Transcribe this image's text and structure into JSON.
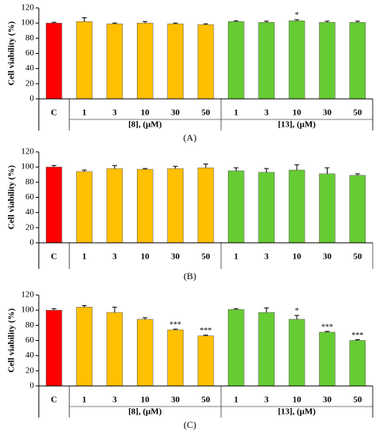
{
  "chart_data": [
    {
      "type": "bar",
      "label": "(A)",
      "y_label": "Cell viability (%)",
      "categories": [
        "C",
        "1",
        "3",
        "10",
        "30",
        "50",
        "1",
        "3",
        "10",
        "30",
        "50"
      ],
      "values": [
        100,
        102,
        99,
        100,
        99,
        98,
        102,
        101,
        103,
        101,
        101
      ],
      "errors": [
        1,
        5,
        1,
        2,
        1,
        1,
        1,
        1.5,
        1.5,
        1.5,
        1.5
      ],
      "colors": [
        "#ff0000",
        "#ffc000",
        "#ffc000",
        "#ffc000",
        "#ffc000",
        "#ffc000",
        "#66cc33",
        "#66cc33",
        "#66cc33",
        "#66cc33",
        "#66cc33"
      ],
      "annotations": [
        {
          "index": 8,
          "text": "*"
        }
      ],
      "groups": [
        {
          "label": "[8], (μM)",
          "start": 1,
          "end": 5
        },
        {
          "label": "[13], (μM)",
          "start": 6,
          "end": 10
        }
      ],
      "ylim": [
        0,
        120
      ],
      "yticks": [
        0,
        20,
        40,
        60,
        80,
        100,
        120
      ]
    },
    {
      "type": "bar",
      "label": "(B)",
      "y_label": "Cell viability (%)",
      "categories": [
        "C",
        "1",
        "3",
        "10",
        "30",
        "50",
        "1",
        "3",
        "10",
        "30",
        "50"
      ],
      "values": [
        100,
        94,
        98,
        97,
        98,
        99,
        95,
        93,
        96,
        91,
        89
      ],
      "errors": [
        2,
        2,
        4,
        1,
        3,
        5,
        4,
        5,
        7,
        8,
        2
      ],
      "colors": [
        "#ff0000",
        "#ffc000",
        "#ffc000",
        "#ffc000",
        "#ffc000",
        "#ffc000",
        "#66cc33",
        "#66cc33",
        "#66cc33",
        "#66cc33",
        "#66cc33"
      ],
      "annotations": [],
      "groups": [],
      "ylim": [
        0,
        120
      ],
      "yticks": [
        0,
        20,
        40,
        60,
        80,
        100,
        120
      ]
    },
    {
      "type": "bar",
      "label": "(C)",
      "y_label": "Cell viability (%)",
      "categories": [
        "C",
        "1",
        "3",
        "10",
        "30",
        "50",
        "1",
        "3",
        "10",
        "30",
        "50"
      ],
      "values": [
        100,
        104,
        97,
        88,
        74,
        66,
        101,
        97,
        88,
        71,
        60
      ],
      "errors": [
        2,
        2,
        7,
        2,
        1,
        1,
        1,
        6,
        5,
        1,
        1
      ],
      "colors": [
        "#ff0000",
        "#ffc000",
        "#ffc000",
        "#ffc000",
        "#ffc000",
        "#ffc000",
        "#66cc33",
        "#66cc33",
        "#66cc33",
        "#66cc33",
        "#66cc33"
      ],
      "annotations": [
        {
          "index": 4,
          "text": "***"
        },
        {
          "index": 5,
          "text": "***"
        },
        {
          "index": 8,
          "text": "*"
        },
        {
          "index": 9,
          "text": "***"
        },
        {
          "index": 10,
          "text": "***"
        }
      ],
      "groups": [
        {
          "label": "[8], (μM)",
          "start": 1,
          "end": 5
        },
        {
          "label": "[13], (μM)",
          "start": 6,
          "end": 10
        }
      ],
      "ylim": [
        0,
        120
      ],
      "yticks": [
        0,
        20,
        40,
        60,
        80,
        100,
        120
      ]
    }
  ]
}
